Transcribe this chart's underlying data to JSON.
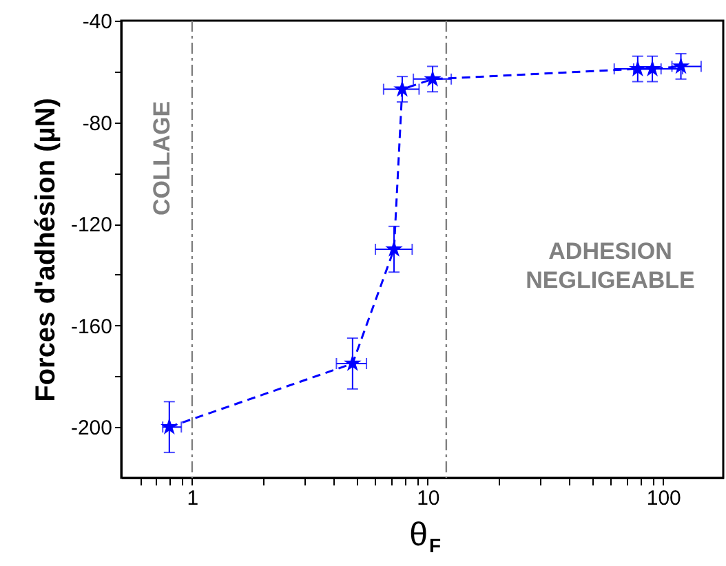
{
  "chart_data": {
    "type": "line",
    "xlabel": "θ$_{F}$",
    "ylabel": "Forces d'adhésion (µN)",
    "x": [
      0.8,
      4.8,
      7.2,
      7.8,
      10.5,
      78,
      90,
      119
    ],
    "series": [
      {
        "color": "#0000ff",
        "values": [
          -200,
          -175,
          -130,
          -67,
          -63,
          -59,
          -59,
          -58
        ],
        "errors": [
          10,
          10,
          9,
          5,
          5,
          5,
          5,
          5
        ],
        "xerrors": [
          [
            0.75,
            0.9
          ],
          [
            4.1,
            5.5
          ],
          [
            6.0,
            8.6
          ],
          [
            6.5,
            9.2
          ],
          [
            8.7,
            12.6
          ],
          [
            62,
            98
          ],
          [
            75,
            121
          ],
          [
            109,
            145
          ]
        ]
      }
    ],
    "marker": "star",
    "line_style": "dashed",
    "log": "x",
    "grid": false,
    "xlim": [
      0.5,
      180
    ],
    "ylim": [
      -220,
      -40
    ],
    "xticks": [
      {
        "value": 0.6,
        "label": null
      },
      {
        "value": 0.7,
        "label": null
      },
      {
        "value": 0.8,
        "label": null
      },
      {
        "value": 0.9,
        "label": null
      },
      1,
      {
        "value": 2,
        "label": null
      },
      {
        "value": 3,
        "label": null
      },
      {
        "value": 4,
        "label": null
      },
      {
        "value": 5,
        "label": null
      },
      {
        "value": 6,
        "label": null
      },
      {
        "value": 7,
        "label": null
      },
      {
        "value": 8,
        "label": null
      },
      {
        "value": 9,
        "label": null
      },
      10,
      {
        "value": 20,
        "label": null
      },
      {
        "value": 30,
        "label": null
      },
      {
        "value": 40,
        "label": null
      },
      {
        "value": 50,
        "label": null
      },
      {
        "value": 60,
        "label": null
      },
      {
        "value": 70,
        "label": null
      },
      {
        "value": 80,
        "label": null
      },
      {
        "value": 90,
        "label": null
      },
      100
    ],
    "yticks": [
      -200,
      {
        "value": -180,
        "label": null
      },
      -160,
      {
        "value": -140,
        "label": null
      },
      -120,
      {
        "value": -100,
        "label": null
      },
      -80,
      {
        "value": -60,
        "label": null
      },
      -40
    ],
    "ref_lines": [
      {
        "axis": "x",
        "value": 1,
        "color": "#808080",
        "line_style": "dashdot"
      },
      {
        "axis": "x",
        "value": 12,
        "color": "#808080",
        "line_style": "dashdot"
      }
    ],
    "annotations": [
      "COLLAGE",
      "ADHESION NEGLIGEABLE"
    ]
  }
}
